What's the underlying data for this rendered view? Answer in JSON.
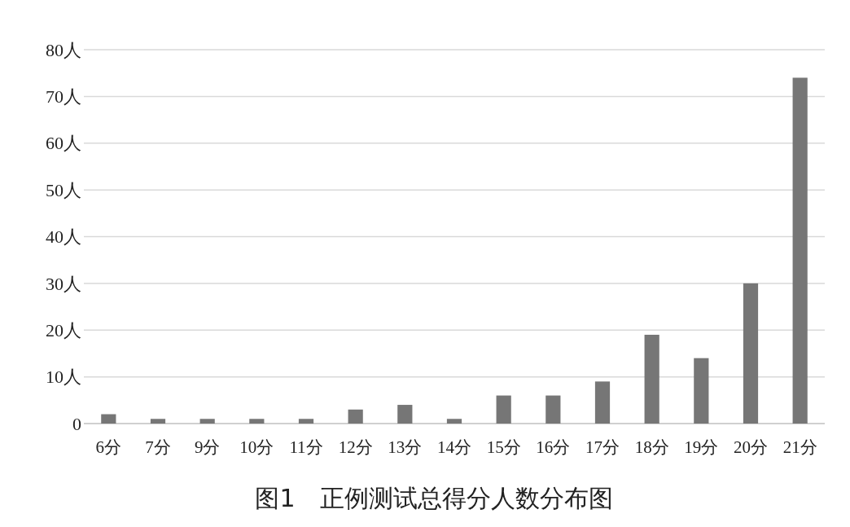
{
  "chart_data": {
    "type": "bar",
    "title": "图1　正例测试总得分人数分布图",
    "categories": [
      "6分",
      "7分",
      "9分",
      "10分",
      "11分",
      "12分",
      "13分",
      "14分",
      "15分",
      "16分",
      "17分",
      "18分",
      "19分",
      "20分",
      "21分"
    ],
    "values": [
      2,
      1,
      1,
      1,
      1,
      3,
      4,
      1,
      6,
      6,
      9,
      19,
      14,
      30,
      74
    ],
    "color": "#767676",
    "ylim": [
      0,
      80
    ],
    "yticks": [
      0,
      {
        "value": 10,
        "label": "10人"
      },
      {
        "value": 20,
        "label": "20人"
      },
      {
        "value": 30,
        "label": "30人"
      },
      {
        "value": 40,
        "label": "40人"
      },
      {
        "value": 50,
        "label": "50人"
      },
      {
        "value": 60,
        "label": "60人"
      },
      {
        "value": 70,
        "label": "70人"
      },
      {
        "value": 80,
        "label": "80人"
      }
    ],
    "grid": "y"
  }
}
